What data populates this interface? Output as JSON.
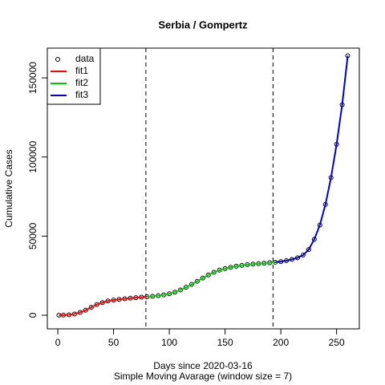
{
  "chart_data": {
    "type": "line",
    "title": "Serbia / Gompertz",
    "xlabel": "Days since 2020-03-16",
    "subtitle": "Simple Moving Avarage (window size = 7)",
    "ylabel": "Cumulative Cases",
    "xlim": [
      -9.4,
      270.4
    ],
    "xticks": [
      0,
      50,
      100,
      150,
      200,
      250
    ],
    "ylim": [
      -8600,
      168800
    ],
    "yticks": [
      0,
      50000,
      100000,
      150000
    ],
    "vlines": [
      79,
      193
    ],
    "legend": "top-left",
    "series": [
      {
        "name": "data",
        "color": "#000000",
        "x": [
          1,
          5,
          10,
          15,
          20,
          25,
          30,
          35,
          40,
          45,
          50,
          55,
          60,
          65,
          70,
          75,
          80,
          85,
          90,
          95,
          100,
          105,
          110,
          115,
          120,
          125,
          130,
          135,
          140,
          145,
          150,
          155,
          160,
          165,
          170,
          175,
          180,
          185,
          190,
          195,
          200,
          205,
          210,
          215,
          220,
          225,
          230,
          235,
          240,
          245,
          250,
          255,
          260
        ],
        "values": [
          0,
          100,
          300,
          800,
          1800,
          3200,
          5000,
          6800,
          8000,
          9000,
          9600,
          10000,
          10400,
          10800,
          11100,
          11400,
          11700,
          12000,
          12400,
          12900,
          13600,
          14600,
          16000,
          17700,
          19500,
          21500,
          23500,
          25500,
          27200,
          28500,
          29500,
          30300,
          31000,
          31500,
          32000,
          32300,
          32600,
          32900,
          33200,
          33500,
          33900,
          34500,
          35300,
          36300,
          38000,
          41500,
          48000,
          57000,
          70000,
          87000,
          108000,
          133000,
          164000
        ]
      },
      {
        "name": "fit1",
        "color": "#ff0000",
        "x": [
          1,
          5,
          10,
          15,
          20,
          25,
          30,
          35,
          40,
          45,
          50,
          55,
          60,
          65,
          70,
          75,
          80
        ],
        "values": [
          0,
          100,
          300,
          800,
          1800,
          3200,
          5000,
          6800,
          8000,
          9000,
          9600,
          10000,
          10400,
          10800,
          11100,
          11400,
          11700
        ]
      },
      {
        "name": "fit2",
        "color": "#00cc00",
        "x": [
          80,
          85,
          90,
          95,
          100,
          105,
          110,
          115,
          120,
          125,
          130,
          135,
          140,
          145,
          150,
          155,
          160,
          165,
          170,
          175,
          180,
          185,
          190,
          195
        ],
        "values": [
          11700,
          12000,
          12400,
          12900,
          13600,
          14600,
          16000,
          17700,
          19500,
          21500,
          23500,
          25500,
          27200,
          28500,
          29500,
          30300,
          31000,
          31500,
          32000,
          32300,
          32600,
          32900,
          33200,
          33500
        ]
      },
      {
        "name": "fit3",
        "color": "#0000cc",
        "x": [
          195,
          200,
          205,
          210,
          215,
          220,
          225,
          230,
          235,
          240,
          245,
          250,
          255,
          260
        ],
        "values": [
          33500,
          33900,
          34500,
          35300,
          36300,
          38000,
          41500,
          48000,
          57000,
          70000,
          87000,
          108000,
          133000,
          164000
        ]
      }
    ]
  }
}
